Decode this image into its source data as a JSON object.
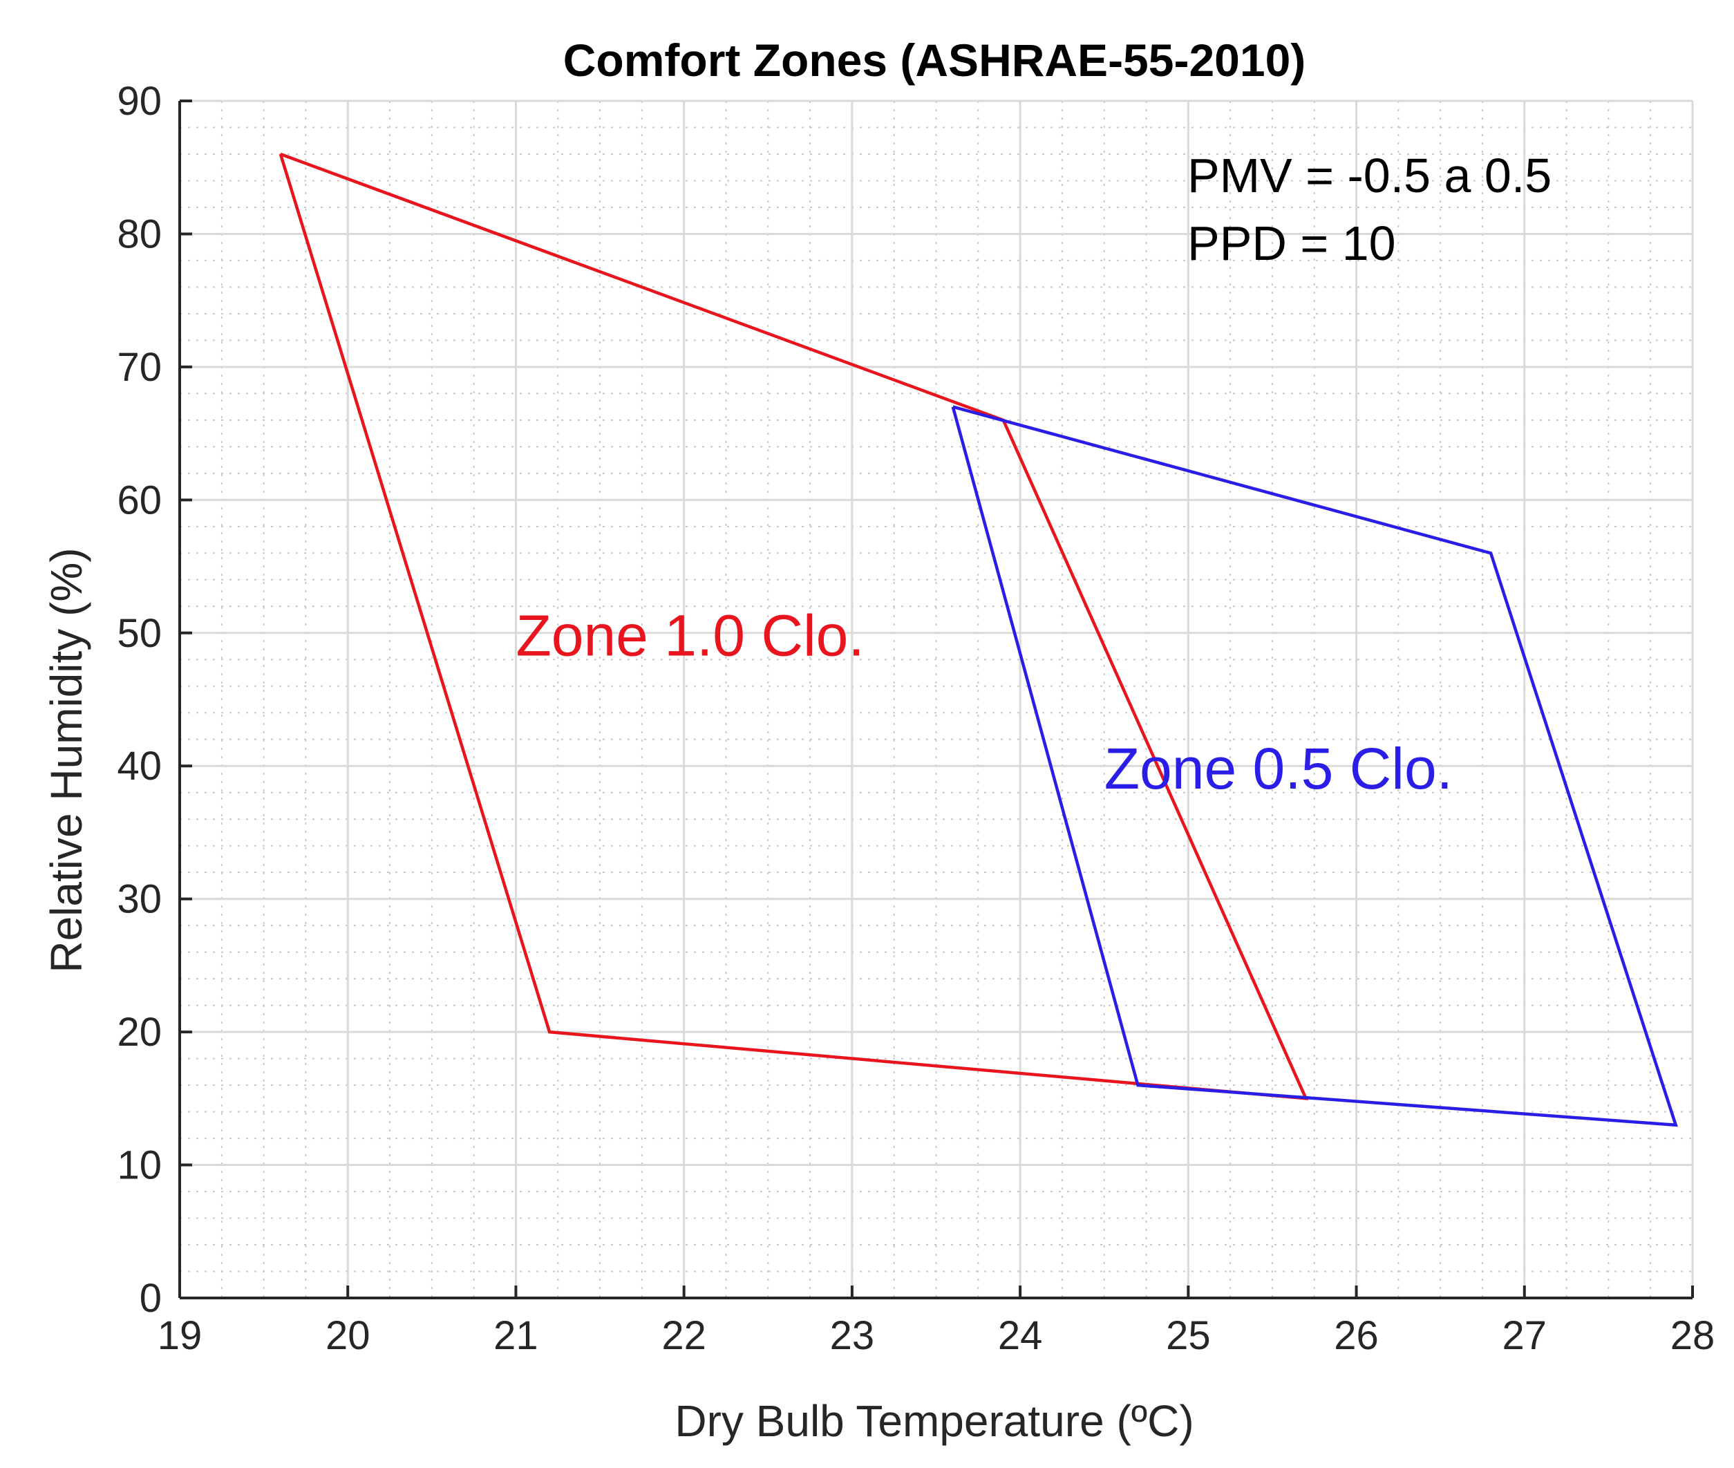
{
  "chart_data": {
    "type": "line",
    "title": "Comfort Zones (ASHRAE-55-2010)",
    "xlabel": "Dry Bulb Temperature (ºC)",
    "ylabel": "Relative Humidity (%)",
    "xlim": [
      19,
      28
    ],
    "ylim": [
      0,
      90
    ],
    "xticks": [
      19,
      20,
      21,
      22,
      23,
      24,
      25,
      26,
      27,
      28
    ],
    "yticks": [
      0,
      10,
      20,
      30,
      40,
      50,
      60,
      70,
      80,
      90
    ],
    "grid": true,
    "minor_grid": true,
    "annotations": [
      "PMV = -0.5 a 0.5",
      "PPD = 10"
    ],
    "series": [
      {
        "name": "Zone 1.0 Clo.",
        "color": "#e8141e",
        "x": [
          19.6,
          23.9,
          25.7,
          21.2,
          19.6
        ],
        "y": [
          86,
          66,
          15,
          20,
          86
        ]
      },
      {
        "name": "Zone 0.5 Clo.",
        "color": "#2a1ee6",
        "x": [
          23.6,
          26.8,
          27.9,
          24.7,
          23.6
        ],
        "y": [
          67,
          56,
          13,
          16,
          67
        ]
      }
    ],
    "series_labels": [
      {
        "text": "Zone 1.0 Clo.",
        "color": "#e8141e",
        "x": 21.0,
        "y": 48.3
      },
      {
        "text": "Zone 0.5 Clo.",
        "color": "#2a1ee6",
        "x": 24.5,
        "y": 38.3
      }
    ]
  }
}
